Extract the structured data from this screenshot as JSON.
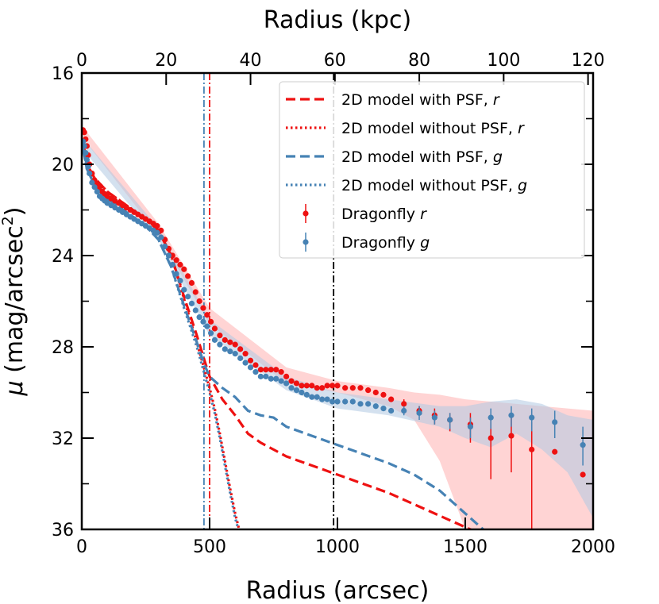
{
  "chart_data": {
    "type": "line",
    "xlabel": "Radius (arcsec)",
    "x2label": "Radius (kpc)",
    "ylabel_prefix": "μ",
    "ylabel_main": " (mag/arcsec",
    "ylabel_sup": "2",
    "ylabel_close": ")",
    "xlim": [
      0,
      2000
    ],
    "ylim": [
      36,
      16
    ],
    "x2lim": [
      0,
      121.2
    ],
    "xticks": [
      0,
      500,
      1000,
      1500,
      2000
    ],
    "xtick_labels": [
      "0",
      "500",
      "1000",
      "1500",
      "2000"
    ],
    "x2ticks": [
      0,
      20,
      40,
      60,
      80,
      100,
      120
    ],
    "x2tick_labels": [
      "0",
      "20",
      "40",
      "60",
      "80",
      "100",
      "120"
    ],
    "yticks": [
      16,
      20,
      24,
      28,
      32,
      36
    ],
    "ytick_labels": [
      "16",
      "20",
      "24",
      "28",
      "32",
      "36"
    ],
    "yminor_ticks": [
      18,
      22,
      26,
      30,
      34
    ],
    "colors": {
      "r": "#ee1111",
      "g": "#4682b4",
      "r_band": "#ffb0b0",
      "g_band": "#b0c8e2"
    },
    "vlines": [
      {
        "name": "vline-g",
        "x": 478,
        "color": "#4682b4",
        "style": "dashdot"
      },
      {
        "name": "vline-r",
        "x": 500,
        "color": "#ee1111",
        "style": "dashdot"
      },
      {
        "name": "vline-black",
        "x": 985,
        "color": "#000000",
        "style": "dashdot"
      }
    ],
    "series": [
      {
        "name": "2D model with PSF, r",
        "label_prefix": "2D model with PSF, ",
        "label_band": "r",
        "color": "#ee1111",
        "style": "dashed",
        "x": [
          5,
          20,
          50,
          100,
          150,
          200,
          250,
          300,
          350,
          400,
          450,
          480,
          500,
          550,
          600,
          650,
          700,
          800,
          900,
          1000,
          1100,
          1200,
          1300,
          1400,
          1500,
          1560
        ],
        "y": [
          19.0,
          20.0,
          20.6,
          21.2,
          21.6,
          22.0,
          22.4,
          22.9,
          24.0,
          25.8,
          27.5,
          28.6,
          29.3,
          30.3,
          31.0,
          31.8,
          32.2,
          32.8,
          33.2,
          33.6,
          34.0,
          34.4,
          34.9,
          35.4,
          35.9,
          36.2
        ]
      },
      {
        "name": "2D model without PSF, r",
        "label_prefix": "2D model without PSF, ",
        "label_band": "r",
        "color": "#ee1111",
        "style": "dotted",
        "x": [
          5,
          20,
          50,
          100,
          150,
          200,
          250,
          300,
          350,
          400,
          450,
          480,
          500,
          520,
          540,
          560,
          580,
          600,
          620
        ],
        "y": [
          19.0,
          20.0,
          20.6,
          21.2,
          21.6,
          22.0,
          22.4,
          22.9,
          24.0,
          25.9,
          27.8,
          29.0,
          29.8,
          30.7,
          31.8,
          33.0,
          34.2,
          35.3,
          36.2
        ]
      },
      {
        "name": "2D model with PSF, g",
        "label_prefix": "2D model with PSF, ",
        "label_band": "g",
        "color": "#4682b4",
        "style": "dashed",
        "x": [
          5,
          20,
          50,
          100,
          150,
          200,
          250,
          300,
          350,
          400,
          450,
          480,
          500,
          550,
          600,
          650,
          700,
          750,
          800,
          900,
          1000,
          1100,
          1200,
          1300,
          1400,
          1500,
          1600
        ],
        "y": [
          19.3,
          20.2,
          20.9,
          21.5,
          21.9,
          22.3,
          22.7,
          23.3,
          24.5,
          26.2,
          27.8,
          28.8,
          29.3,
          29.8,
          30.2,
          30.8,
          31.0,
          31.1,
          31.5,
          31.9,
          32.3,
          32.7,
          33.1,
          33.6,
          34.3,
          35.3,
          36.3
        ]
      },
      {
        "name": "2D model without PSF, g",
        "label_prefix": "2D model without PSF, ",
        "label_band": "g",
        "color": "#4682b4",
        "style": "dotted",
        "x": [
          5,
          20,
          50,
          100,
          150,
          200,
          250,
          300,
          350,
          400,
          450,
          480,
          500,
          520,
          540,
          560,
          580,
          600,
          620
        ],
        "y": [
          19.3,
          20.2,
          20.9,
          21.5,
          21.9,
          22.3,
          22.7,
          23.3,
          24.5,
          26.3,
          28.0,
          29.2,
          30.0,
          30.9,
          32.0,
          33.2,
          34.4,
          35.5,
          36.3
        ]
      }
    ],
    "profiles": [
      {
        "name": "Dragonfly r",
        "label_prefix": "Dragonfly ",
        "label_band": "r",
        "color": "#ee1111",
        "band_color": "#ffb0b0",
        "x": [
          5,
          10,
          15,
          20,
          25,
          30,
          40,
          50,
          60,
          70,
          80,
          90,
          100,
          115,
          130,
          145,
          160,
          175,
          190,
          205,
          220,
          235,
          250,
          265,
          280,
          295,
          310,
          325,
          340,
          355,
          370,
          385,
          400,
          415,
          430,
          445,
          460,
          475,
          490,
          505,
          520,
          540,
          560,
          580,
          600,
          620,
          640,
          660,
          680,
          700,
          720,
          740,
          760,
          780,
          800,
          820,
          840,
          860,
          880,
          900,
          920,
          940,
          960,
          980,
          1000,
          1030,
          1060,
          1090,
          1120,
          1150,
          1180,
          1210
        ],
        "y": [
          18.5,
          18.6,
          18.9,
          19.2,
          19.6,
          20.0,
          20.4,
          20.7,
          20.9,
          21.0,
          21.2,
          21.3,
          21.4,
          21.5,
          21.6,
          21.7,
          21.8,
          21.9,
          22.0,
          22.1,
          22.2,
          22.3,
          22.4,
          22.5,
          22.6,
          22.7,
          22.9,
          23.3,
          23.7,
          24.0,
          24.2,
          24.4,
          24.6,
          24.9,
          25.2,
          25.6,
          26.0,
          26.3,
          26.6,
          26.9,
          27.2,
          27.5,
          27.7,
          27.8,
          27.9,
          28.1,
          28.3,
          28.6,
          28.8,
          29.0,
          29.0,
          29.0,
          29.0,
          29.1,
          29.3,
          29.5,
          29.6,
          29.7,
          29.7,
          29.7,
          29.8,
          29.8,
          29.7,
          29.7,
          29.7,
          29.8,
          29.8,
          29.8,
          29.9,
          30.0,
          30.1,
          30.3
        ],
        "sparse_x": [
          1260,
          1320,
          1380,
          1440,
          1520,
          1600,
          1680,
          1760,
          1850,
          1960
        ],
        "sparse_y": [
          30.5,
          30.8,
          31.0,
          31.2,
          31.4,
          32.0,
          31.9,
          32.5,
          32.6,
          33.6
        ],
        "sparse_err_up": [
          0.2,
          0.2,
          0.3,
          0.3,
          0.5,
          0.9,
          0.9,
          1.2,
          0.0,
          0.0
        ],
        "sparse_err_down": [
          0.2,
          0.2,
          0.4,
          0.5,
          0.8,
          1.8,
          1.6,
          3.5,
          0.0,
          0.0
        ],
        "band_x": [
          0,
          300,
          500,
          800,
          1000,
          1200,
          1300,
          1400,
          1450,
          1500,
          1600,
          1700,
          1800,
          1900,
          2000
        ],
        "band_upper": [
          18.3,
          22.6,
          26.3,
          28.9,
          29.5,
          29.8,
          30.0,
          30.1,
          30.2,
          30.3,
          30.4,
          30.5,
          30.6,
          30.7,
          30.8
        ],
        "band_lower": [
          18.8,
          23.1,
          27.0,
          29.6,
          30.0,
          30.6,
          31.2,
          33.0,
          34.5,
          36.0,
          36.0,
          36.0,
          36.0,
          36.0,
          36.0
        ]
      },
      {
        "name": "Dragonfly g",
        "label_prefix": "Dragonfly ",
        "label_band": "g",
        "color": "#4682b4",
        "band_color": "#b0c8e2",
        "x": [
          5,
          10,
          15,
          20,
          25,
          30,
          40,
          50,
          60,
          70,
          80,
          90,
          100,
          115,
          130,
          145,
          160,
          175,
          190,
          205,
          220,
          235,
          250,
          265,
          280,
          295,
          310,
          325,
          340,
          355,
          370,
          385,
          400,
          415,
          430,
          445,
          460,
          475,
          490,
          505,
          520,
          540,
          560,
          580,
          600,
          620,
          640,
          660,
          680,
          700,
          720,
          740,
          760,
          780,
          800,
          820,
          840,
          860,
          880,
          900,
          920,
          940,
          960,
          980,
          1000,
          1030,
          1060,
          1090,
          1120,
          1150,
          1180,
          1210
        ],
        "y": [
          19.0,
          19.2,
          19.5,
          19.8,
          20.1,
          20.4,
          20.8,
          21.0,
          21.2,
          21.4,
          21.5,
          21.6,
          21.7,
          21.8,
          21.9,
          22.0,
          22.1,
          22.2,
          22.3,
          22.4,
          22.5,
          22.6,
          22.7,
          22.8,
          22.9,
          23.0,
          23.2,
          23.6,
          24.0,
          24.4,
          24.8,
          25.1,
          25.5,
          25.8,
          26.1,
          26.4,
          26.7,
          26.9,
          27.1,
          27.4,
          27.7,
          27.9,
          28.1,
          28.2,
          28.3,
          28.5,
          28.7,
          28.9,
          29.1,
          29.3,
          29.3,
          29.4,
          29.4,
          29.5,
          29.6,
          29.8,
          29.9,
          30.0,
          30.1,
          30.2,
          30.2,
          30.3,
          30.3,
          30.4,
          30.4,
          30.4,
          30.4,
          30.5,
          30.5,
          30.6,
          30.7,
          30.8
        ],
        "sparse_x": [
          1260,
          1320,
          1380,
          1440,
          1520,
          1600,
          1680,
          1760,
          1850,
          1960
        ],
        "sparse_y": [
          30.8,
          30.9,
          31.1,
          31.2,
          31.5,
          31.1,
          31.0,
          31.1,
          31.3,
          32.3
        ],
        "sparse_err_up": [
          0.2,
          0.3,
          0.3,
          0.3,
          0.4,
          0.4,
          0.4,
          0.4,
          0.5,
          0.8
        ],
        "sparse_err_down": [
          0.2,
          0.3,
          0.3,
          0.4,
          0.5,
          0.5,
          0.5,
          0.6,
          0.7,
          0.9
        ],
        "band_x": [
          0,
          300,
          500,
          800,
          1000,
          1200,
          1400,
          1500,
          1600,
          1700,
          1800,
          1900,
          2000
        ],
        "band_upper": [
          18.8,
          22.8,
          26.8,
          29.3,
          30.0,
          30.3,
          30.6,
          30.6,
          30.4,
          30.3,
          30.5,
          31.0,
          31.2
        ],
        "band_lower": [
          19.3,
          23.3,
          27.5,
          29.9,
          30.7,
          31.0,
          31.5,
          32.0,
          32.4,
          31.8,
          32.5,
          33.5,
          35.5
        ]
      }
    ],
    "legend": {
      "position": "top-right"
    }
  }
}
